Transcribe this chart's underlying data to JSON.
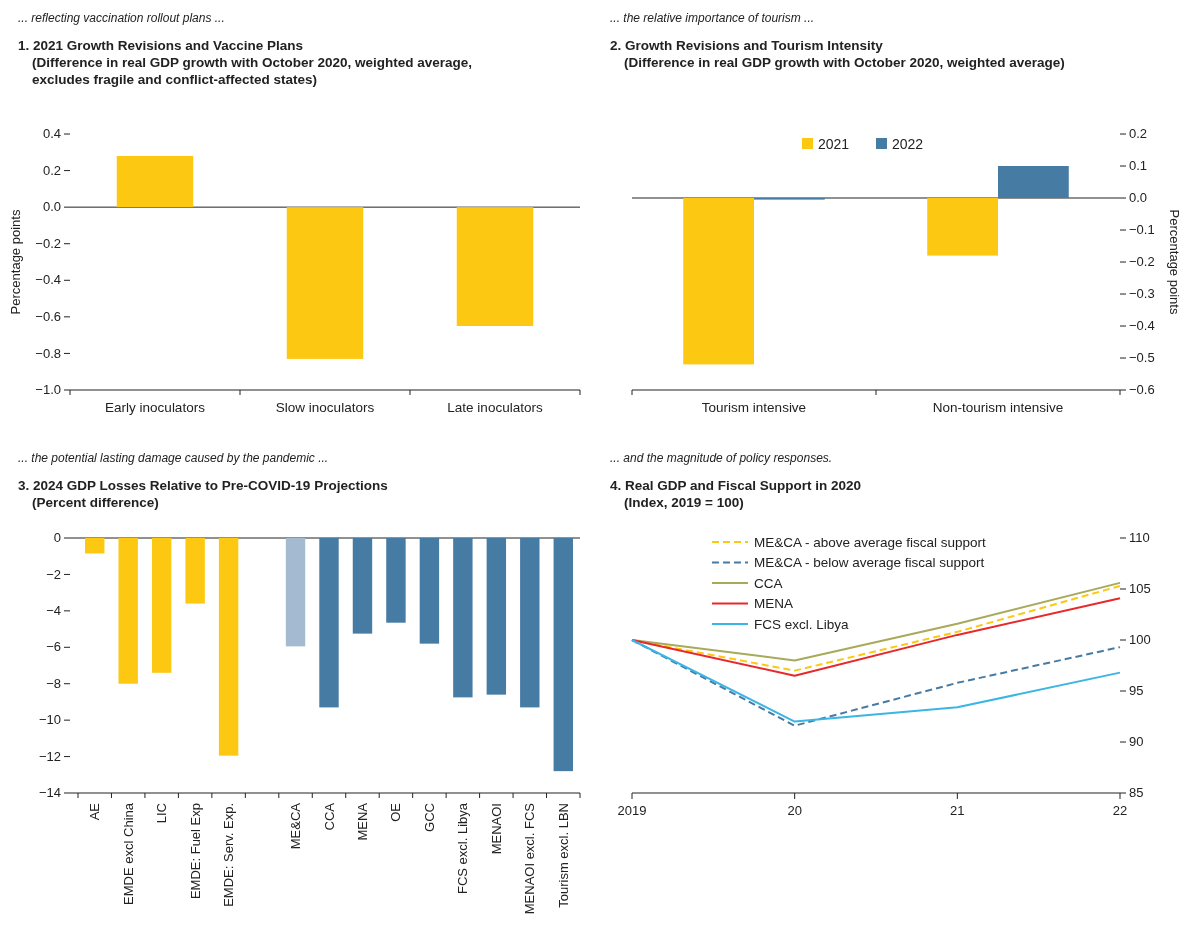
{
  "chart_data": [
    {
      "type": "bar",
      "annotations": [
        "... reflecting vaccination rollout plans ..."
      ],
      "title": "1. 2021 Growth Revisions and Vaccine Plans",
      "subtitle": "(Difference in real GDP growth with October 2020, weighted average, excludes fragile and conflict-affected states)",
      "ylabel": "Percentage points",
      "categories": [
        "Early inoculators",
        "Slow inoculators",
        "Late inoculators"
      ],
      "values": [
        0.28,
        -0.83,
        -0.65
      ],
      "color": "#fcc812",
      "ylim": [
        -1.0,
        0.4
      ],
      "yticks": [
        {
          "value": 0.4,
          "label": "0.4"
        },
        {
          "value": 0.2,
          "label": "0.2"
        },
        {
          "value": 0,
          "label": "0.0"
        },
        {
          "value": -0.2,
          "label": "−0.2"
        },
        {
          "value": -0.4,
          "label": "−0.4"
        },
        {
          "value": -0.6,
          "label": "−0.6"
        },
        {
          "value": -0.8,
          "label": "−0.8"
        },
        {
          "value": -1.0,
          "label": "−1.0"
        }
      ],
      "ref_lines": [
        {
          "axis": "y",
          "value": 0,
          "color": "#222222"
        }
      ],
      "grid": false
    },
    {
      "type": "bar",
      "annotations": [
        "... the relative importance of tourism ..."
      ],
      "title": "2. Growth Revisions and Tourism Intensity",
      "subtitle": "(Difference in real GDP growth with October 2020, weighted average)",
      "y2label": "Percentage points",
      "categories": [
        "Tourism intensive",
        "Non-tourism intensive"
      ],
      "series": [
        {
          "name": "2021",
          "color": "#fcc812",
          "axis": "y2",
          "values": [
            -0.52,
            -0.18
          ]
        },
        {
          "name": "2022",
          "color": "#467ba3",
          "axis": "y2",
          "values": [
            -0.005,
            0.1
          ]
        }
      ],
      "y2lim": [
        -0.6,
        0.2
      ],
      "y2ticks": [
        0.2,
        0.1,
        {
          "value": 0,
          "label": "0.0"
        },
        {
          "value": -0.1,
          "label": "−0.1"
        },
        {
          "value": -0.2,
          "label": "−0.2"
        },
        {
          "value": -0.3,
          "label": "−0.3"
        },
        {
          "value": -0.4,
          "label": "−0.4"
        },
        {
          "value": -0.5,
          "label": "−0.5"
        },
        {
          "value": -0.6,
          "label": "−0.6"
        }
      ],
      "ref_lines": [
        {
          "axis": "y2",
          "value": 0,
          "color": "#222222"
        }
      ],
      "legend": "top",
      "grid": false
    },
    {
      "type": "bar",
      "annotations": [
        "... the potential lasting damage caused by the pandemic ..."
      ],
      "title": "3. 2024 GDP Losses Relative to Pre-COVID-19 Projections",
      "subtitle": "(Percent difference)",
      "categories": [
        "AE",
        "EMDE excl China",
        "LIC",
        "EMDE: Fuel Exp",
        "EMDE: Serv. Exp.",
        null,
        "ME&CA",
        "CCA",
        "MENA",
        "OE",
        "GCC",
        "FCS excl. Libya",
        "MENAOI",
        "MENAOI excl. FCS",
        "Tourism excl. LBN"
      ],
      "values": [
        -0.85,
        -8.0,
        -7.4,
        -3.6,
        -11.95,
        null,
        -5.95,
        -9.3,
        -5.25,
        -4.65,
        -5.8,
        -8.75,
        -8.6,
        -9.3,
        -12.8
      ],
      "colors": [
        "#fcc812",
        "#fcc812",
        "#fcc812",
        "#fcc812",
        "#fcc812",
        null,
        "#a4bad0",
        "#467ba3",
        "#467ba3",
        "#467ba3",
        "#467ba3",
        "#467ba3",
        "#467ba3",
        "#467ba3",
        "#467ba3"
      ],
      "ylim": [
        -14,
        0
      ],
      "yticks": [
        0,
        {
          "value": -2,
          "label": "−2"
        },
        {
          "value": -4,
          "label": "−4"
        },
        {
          "value": -6,
          "label": "−6"
        },
        {
          "value": -8,
          "label": "−8"
        },
        {
          "value": -10,
          "label": "−10"
        },
        {
          "value": -12,
          "label": "−12"
        },
        {
          "value": -14,
          "label": "−14"
        }
      ],
      "grid": false
    },
    {
      "type": "line",
      "annotations": [
        "... and the magnitude of policy responses."
      ],
      "title": "4. Real GDP and Fiscal Support in 2020",
      "subtitle": "(Index, 2019 = 100)",
      "x": [
        2019,
        2020,
        2021,
        2022
      ],
      "series": [
        {
          "name": "ME&CA - above average fiscal support",
          "color": "#fcc812",
          "axis": "y2",
          "line_style": "dashed",
          "values": [
            100,
            97.0,
            100.8,
            105.3
          ]
        },
        {
          "name": "ME&CA - below average fiscal support",
          "color": "#467ba3",
          "axis": "y2",
          "line_style": "dashed",
          "values": [
            100,
            91.6,
            95.8,
            99.3
          ]
        },
        {
          "name": "CCA",
          "color": "#a9a95a",
          "axis": "y2",
          "line_style": "solid",
          "values": [
            100,
            98.0,
            101.6,
            105.6
          ]
        },
        {
          "name": "MENA",
          "color": "#e8282b",
          "axis": "y2",
          "line_style": "solid",
          "values": [
            100,
            96.5,
            100.5,
            104.1
          ]
        },
        {
          "name": "FCS excl. Libya",
          "color": "#3bb5e5",
          "axis": "y2",
          "line_style": "solid",
          "values": [
            100,
            92.0,
            93.4,
            96.8
          ]
        }
      ],
      "xlim": [
        2019,
        2022
      ],
      "xticks": [
        2019,
        {
          "value": 2020,
          "label": "20"
        },
        {
          "value": 2021,
          "label": "21"
        },
        {
          "value": 2022,
          "label": "22"
        }
      ],
      "y2lim": [
        85,
        110
      ],
      "y2ticks": [
        110,
        105,
        100,
        95,
        90,
        85
      ],
      "legend": "top left",
      "grid": false
    }
  ]
}
